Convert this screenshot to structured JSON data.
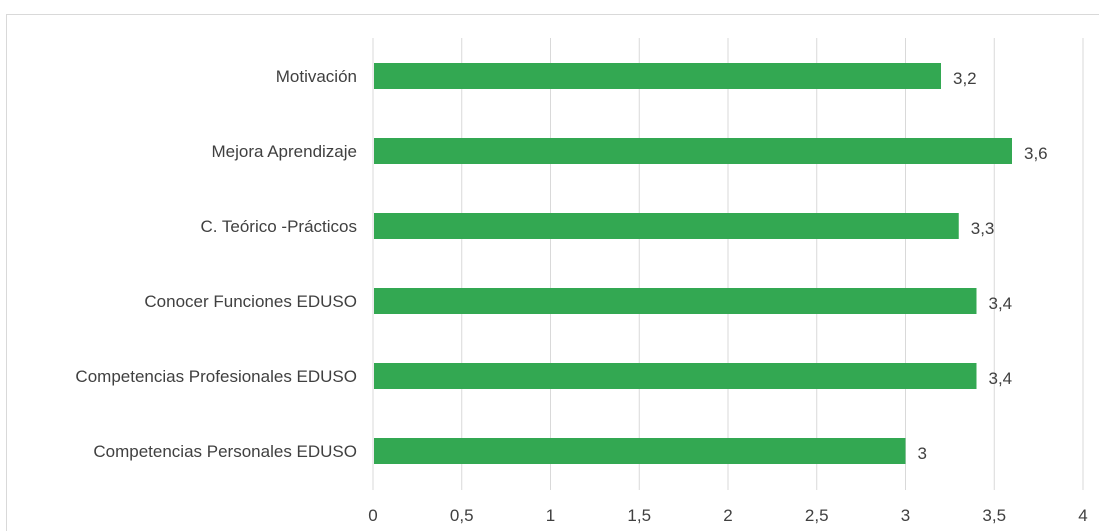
{
  "chart_data": {
    "type": "bar",
    "orientation": "horizontal",
    "categories": [
      "Motivación",
      "Mejora Aprendizaje",
      "C. Teórico -Prácticos",
      "Conocer Funciones EDUSO ",
      "Competencias Profesionales EDUSO",
      "Competencias Personales EDUSO"
    ],
    "values": [
      3.2,
      3.6,
      3.3,
      3.4,
      3.4,
      3
    ],
    "value_labels": [
      "3,2",
      "3,6",
      "3,3",
      "3,4",
      "3,4",
      "3"
    ],
    "xlim": [
      0,
      4
    ],
    "ticks": [
      0,
      0.5,
      1,
      1.5,
      2,
      2.5,
      3,
      3.5,
      4
    ],
    "tick_labels": [
      "0",
      "0,5",
      "1",
      "1,5",
      "2",
      "2,5",
      "3",
      "3,5",
      "4"
    ],
    "title": "",
    "xlabel": "",
    "ylabel": "",
    "grid": "vertical",
    "legend": "none",
    "bar_color": "#33a852",
    "grid_color": "#d9d9d9",
    "text_color": "#404040"
  }
}
